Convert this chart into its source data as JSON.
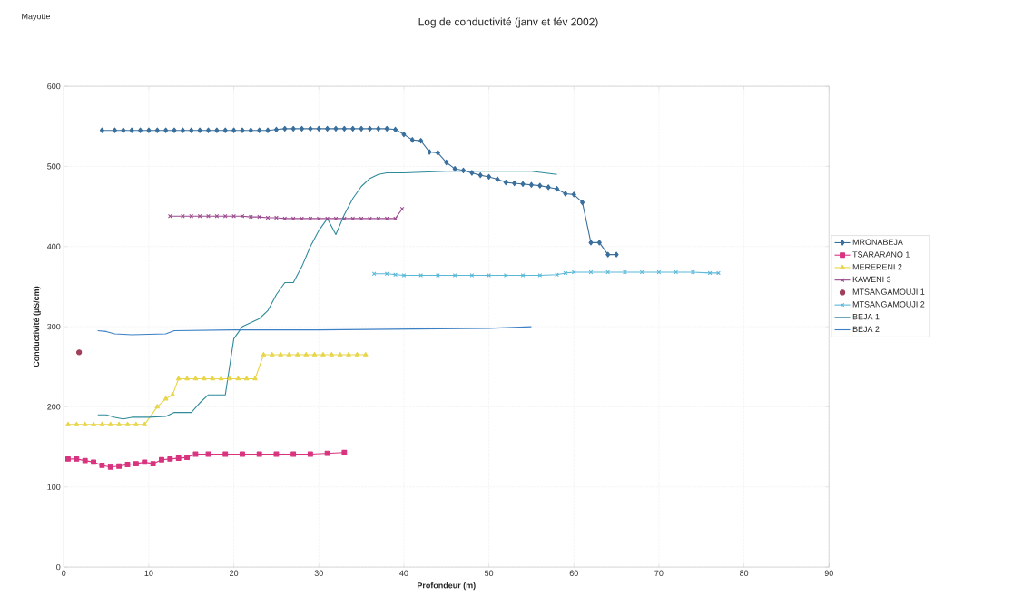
{
  "chart_data": {
    "type": "line",
    "title": "Log de conductivité (janv et fév 2002)",
    "annotations": [
      "Mayotte"
    ],
    "xlabel": "Profondeur (m)",
    "ylabel": "Conductivité (µS/cm)",
    "xlim": [
      0,
      90
    ],
    "ylim": [
      0,
      600
    ],
    "xticks": [
      0,
      10,
      20,
      30,
      40,
      50,
      60,
      70,
      80,
      90
    ],
    "yticks": [
      0,
      100,
      200,
      300,
      400,
      500,
      600
    ],
    "grid": true,
    "legend": "right",
    "line_style": "solid",
    "series": [
      {
        "name": "MRONABEJA",
        "color": "#3a6f9c",
        "marker": "diamond",
        "x": [
          4.5,
          6,
          7,
          8,
          9,
          10,
          11,
          12,
          13,
          14,
          15,
          16,
          17,
          18,
          19,
          20,
          21,
          22,
          23,
          24,
          25,
          26,
          27,
          28,
          29,
          30,
          31,
          32,
          33,
          34,
          35,
          36,
          37,
          38,
          39,
          40,
          41,
          42,
          43,
          44,
          45,
          46,
          47,
          48,
          49,
          50,
          51,
          52,
          53,
          54,
          55,
          56,
          57,
          58,
          59,
          60,
          61,
          62,
          63,
          64,
          65
        ],
        "values": [
          545,
          545,
          545,
          545,
          545,
          545,
          545,
          545,
          545,
          545,
          545,
          545,
          545,
          545,
          545,
          545,
          545,
          545,
          545,
          545,
          546,
          547,
          547,
          547,
          547,
          547,
          547,
          547,
          547,
          547,
          547,
          547,
          547,
          547,
          546,
          540,
          533,
          532,
          518,
          517,
          505,
          497,
          495,
          492,
          489,
          487,
          484,
          480,
          479,
          478,
          477,
          476,
          474,
          472,
          466,
          465,
          455,
          405,
          405,
          390,
          390
        ]
      },
      {
        "name": "TSARARANO 1",
        "color": "#d9337f",
        "marker": "square",
        "x": [
          0.5,
          1.5,
          2.5,
          3.5,
          4.5,
          5.5,
          6.5,
          7.5,
          8.5,
          9.5,
          10.5,
          11.5,
          12.5,
          13.5,
          14.5,
          15.5,
          17,
          19,
          21,
          23,
          25,
          27,
          29,
          31,
          33
        ],
        "values": [
          135,
          135,
          133,
          131,
          127,
          125,
          126,
          128,
          129,
          131,
          129,
          134,
          135,
          136,
          137,
          141,
          141,
          141,
          141,
          141,
          141,
          141,
          141,
          142,
          143
        ]
      },
      {
        "name": "MERERENI 2",
        "color": "#e8d54a",
        "marker": "triangle",
        "x": [
          0.5,
          1.5,
          2.5,
          3.5,
          4.5,
          5.5,
          6.5,
          7.5,
          8.5,
          9.5,
          11,
          12,
          12.8,
          13.5,
          14.5,
          15.5,
          16.5,
          17.5,
          18.5,
          19.5,
          20.5,
          21.5,
          22.5,
          23.5,
          24.5,
          25.5,
          26.5,
          27.5,
          28.5,
          29.5,
          30.5,
          31.5,
          32.5,
          33.5,
          34.5,
          35.5
        ],
        "values": [
          178,
          178,
          178,
          178,
          178,
          178,
          178,
          178,
          178,
          178,
          200,
          210,
          215,
          235,
          235,
          235,
          235,
          235,
          235,
          235,
          235,
          235,
          235,
          265,
          265,
          265,
          265,
          265,
          265,
          265,
          265,
          265,
          265,
          265,
          265,
          265
        ]
      },
      {
        "name": "KAWENI 3",
        "color": "#9b4a8f",
        "marker": "cross",
        "x": [
          12.5,
          14,
          15,
          16,
          17,
          18,
          19,
          20,
          21,
          22,
          23,
          24,
          25,
          26,
          27,
          28,
          29,
          30,
          31,
          32,
          33,
          34,
          35,
          36,
          37,
          38,
          39,
          39.8
        ],
        "values": [
          438,
          438,
          438,
          438,
          438,
          438,
          438,
          438,
          438,
          437,
          437,
          436,
          436,
          435,
          435,
          435,
          435,
          435,
          435,
          435,
          435,
          435,
          435,
          435,
          435,
          435,
          435,
          447
        ]
      },
      {
        "name": "MTSANGAMOUJI 1",
        "color": "#a0405a",
        "marker": "circle",
        "x": [
          1.8
        ],
        "values": [
          268
        ]
      },
      {
        "name": "MTSANGAMOUJI 2",
        "color": "#5ab8d8",
        "marker": "cross",
        "x": [
          36.5,
          38,
          39,
          40,
          42,
          44,
          46,
          48,
          50,
          52,
          54,
          56,
          58,
          59,
          60,
          62,
          64,
          66,
          68,
          70,
          72,
          74,
          76,
          77
        ],
        "values": [
          366,
          366,
          365,
          364,
          364,
          364,
          364,
          364,
          364,
          364,
          364,
          364,
          365,
          367,
          368,
          368,
          368,
          368,
          368,
          368,
          368,
          368,
          367,
          367
        ]
      },
      {
        "name": "BEJA 1",
        "color": "#2f8a9a",
        "marker": "none",
        "x": [
          4,
          5,
          6,
          7,
          8,
          10,
          12,
          13,
          15,
          16,
          17,
          19,
          19.5,
          20,
          21,
          22,
          23,
          24,
          25,
          26,
          27,
          28,
          29,
          30,
          31,
          32,
          33,
          34,
          35,
          36,
          37,
          38,
          40,
          45,
          50,
          55,
          58
        ],
        "values": [
          190,
          190,
          187,
          185,
          187,
          187,
          188,
          193,
          193,
          205,
          215,
          215,
          250,
          285,
          300,
          305,
          310,
          320,
          340,
          355,
          355,
          375,
          400,
          420,
          435,
          415,
          440,
          460,
          475,
          485,
          490,
          492,
          492,
          494,
          494,
          494,
          490
        ]
      },
      {
        "name": "BEJA 2",
        "color": "#3b7fc4",
        "marker": "none",
        "x": [
          4,
          5,
          6,
          8,
          12,
          13,
          20,
          30,
          40,
          50,
          55
        ],
        "values": [
          295,
          294,
          291,
          290,
          291,
          295,
          296,
          296,
          297,
          298,
          300
        ]
      }
    ]
  }
}
